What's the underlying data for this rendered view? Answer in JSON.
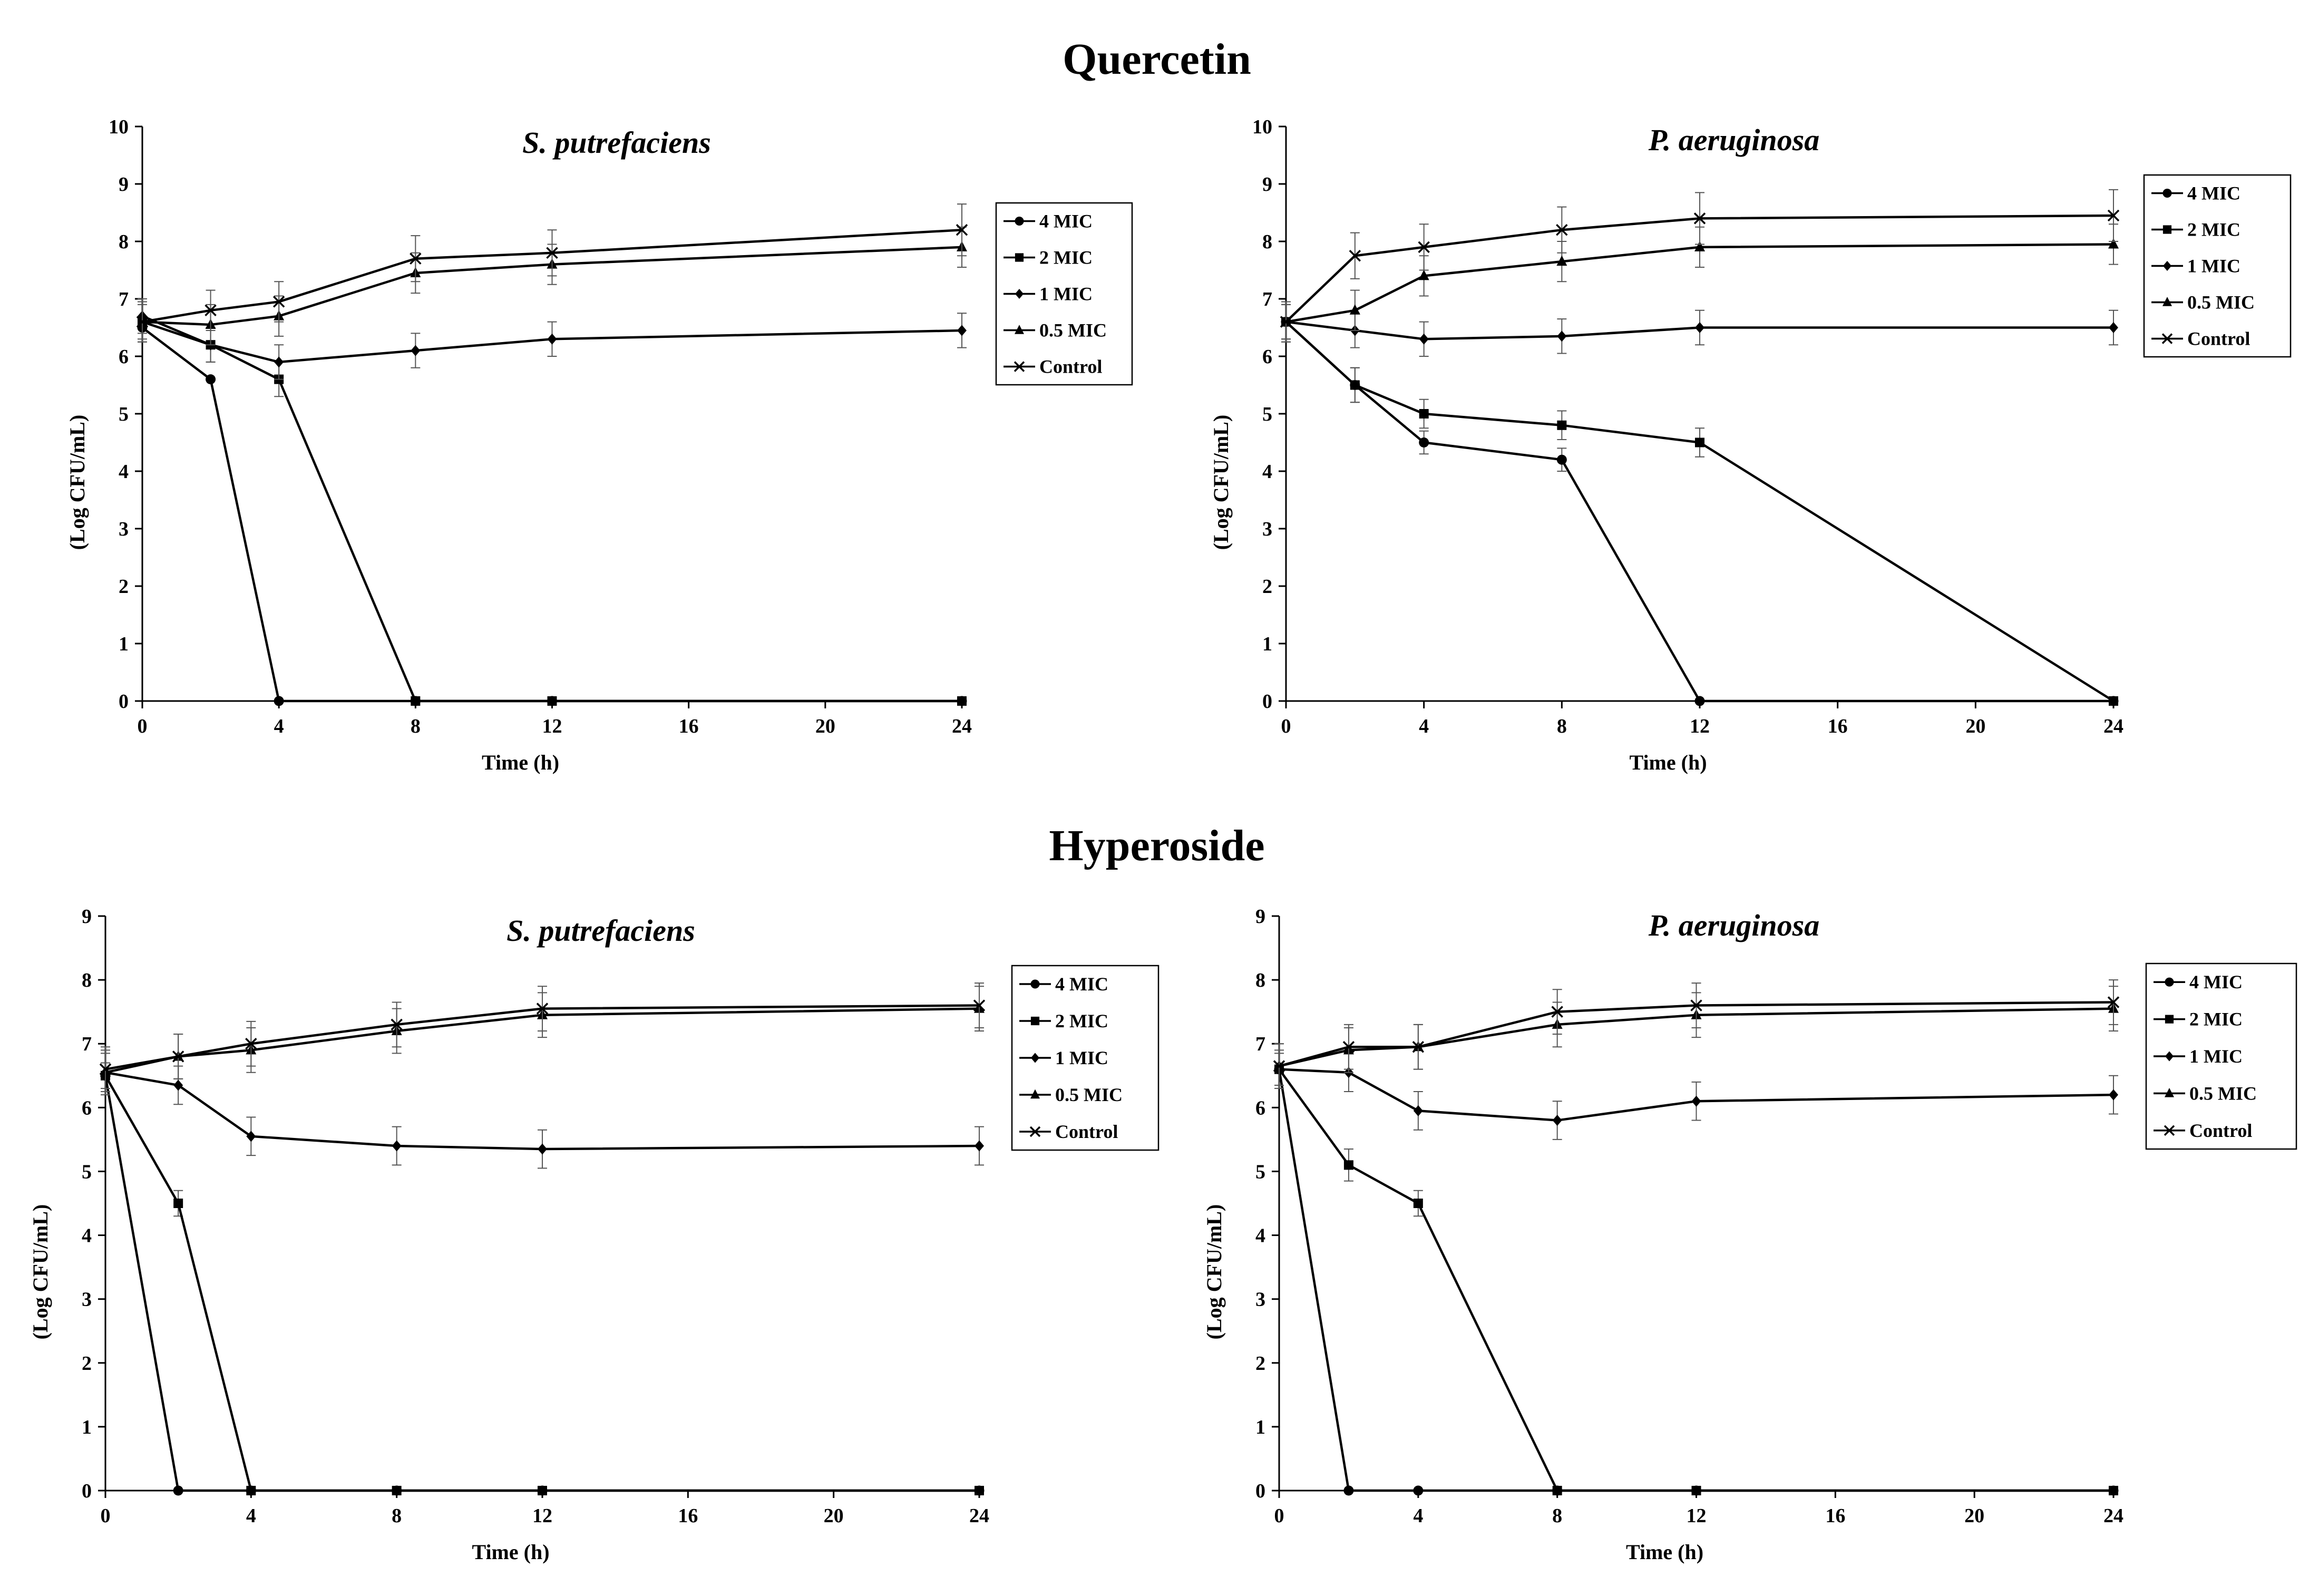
{
  "section_titles": [
    "Quercetin",
    "Hyperoside"
  ],
  "chart_data": [
    {
      "type": "line",
      "group": "Quercetin",
      "title": "S. putrefaciens",
      "xlabel": "Time (h)",
      "ylabel": "(Log CFU/mL)",
      "xlim": [
        0,
        24
      ],
      "ylim": [
        0,
        10
      ],
      "xticks": [
        0,
        4,
        8,
        12,
        16,
        20,
        24
      ],
      "yticks": [
        0,
        1,
        2,
        3,
        4,
        5,
        6,
        7,
        8,
        9,
        10
      ],
      "legend_position": "right",
      "series": [
        {
          "name": "4 MIC",
          "marker": "circle",
          "x": [
            0,
            2,
            4,
            8,
            12,
            24
          ],
          "y": [
            6.5,
            5.6,
            0,
            0,
            0,
            0
          ],
          "err": [
            0,
            0,
            0,
            0,
            0,
            0
          ]
        },
        {
          "name": "2 MIC",
          "marker": "square",
          "x": [
            0,
            2,
            4,
            8,
            12,
            24
          ],
          "y": [
            6.6,
            6.2,
            5.6,
            0,
            0,
            0
          ],
          "err": [
            0.3,
            0.3,
            0.3,
            0,
            0,
            0
          ]
        },
        {
          "name": "1 MIC",
          "marker": "diamond",
          "x": [
            0,
            2,
            4,
            8,
            12,
            24
          ],
          "y": [
            6.7,
            6.2,
            5.9,
            6.1,
            6.3,
            6.45
          ],
          "err": [
            0.3,
            0.3,
            0.3,
            0.3,
            0.3,
            0.3
          ]
        },
        {
          "name": "0.5 MIC",
          "marker": "triangle",
          "x": [
            0,
            2,
            4,
            8,
            12,
            24
          ],
          "y": [
            6.6,
            6.55,
            6.7,
            7.45,
            7.6,
            7.9
          ],
          "err": [
            0.35,
            0.35,
            0.35,
            0.35,
            0.35,
            0.35
          ]
        },
        {
          "name": "Control",
          "marker": "x",
          "x": [
            0,
            2,
            4,
            8,
            12,
            24
          ],
          "y": [
            6.6,
            6.8,
            6.95,
            7.7,
            7.8,
            8.2
          ],
          "err": [
            0.35,
            0.35,
            0.35,
            0.4,
            0.4,
            0.45
          ]
        }
      ]
    },
    {
      "type": "line",
      "group": "Quercetin",
      "title": "P. aeruginosa",
      "xlabel": "Time (h)",
      "ylabel": "(Log CFU/mL)",
      "xlim": [
        0,
        24
      ],
      "ylim": [
        0,
        10
      ],
      "xticks": [
        0,
        4,
        8,
        12,
        16,
        20,
        24
      ],
      "yticks": [
        0,
        1,
        2,
        3,
        4,
        5,
        6,
        7,
        8,
        9,
        10
      ],
      "legend_position": "right",
      "series": [
        {
          "name": "4 MIC",
          "marker": "circle",
          "x": [
            0,
            2,
            4,
            8,
            12,
            24
          ],
          "y": [
            6.6,
            5.5,
            4.5,
            4.2,
            0,
            0
          ],
          "err": [
            0.3,
            0.3,
            0.2,
            0.2,
            0,
            0
          ]
        },
        {
          "name": "2 MIC",
          "marker": "square",
          "x": [
            0,
            2,
            4,
            8,
            12,
            24
          ],
          "y": [
            6.6,
            5.5,
            5.0,
            4.8,
            4.5,
            0
          ],
          "err": [
            0.3,
            0.3,
            0.25,
            0.25,
            0.25,
            0
          ]
        },
        {
          "name": "1 MIC",
          "marker": "diamond",
          "x": [
            0,
            2,
            4,
            8,
            12,
            24
          ],
          "y": [
            6.6,
            6.45,
            6.3,
            6.35,
            6.5,
            6.5
          ],
          "err": [
            0.3,
            0.3,
            0.3,
            0.3,
            0.3,
            0.3
          ]
        },
        {
          "name": "0.5 MIC",
          "marker": "triangle",
          "x": [
            0,
            2,
            4,
            8,
            12,
            24
          ],
          "y": [
            6.6,
            6.8,
            7.4,
            7.65,
            7.9,
            7.95
          ],
          "err": [
            0.35,
            0.35,
            0.35,
            0.35,
            0.35,
            0.35
          ]
        },
        {
          "name": "Control",
          "marker": "x",
          "x": [
            0,
            2,
            4,
            8,
            12,
            24
          ],
          "y": [
            6.6,
            7.75,
            7.9,
            8.2,
            8.4,
            8.45
          ],
          "err": [
            0.35,
            0.4,
            0.4,
            0.4,
            0.45,
            0.45
          ]
        }
      ]
    },
    {
      "type": "line",
      "group": "Hyperoside",
      "title": "S. putrefaciens",
      "xlabel": "Time (h)",
      "ylabel": "(Log CFU/mL)",
      "xlim": [
        0,
        24
      ],
      "ylim": [
        0,
        9
      ],
      "xticks": [
        0,
        4,
        8,
        12,
        16,
        20,
        24
      ],
      "yticks": [
        0,
        1,
        2,
        3,
        4,
        5,
        6,
        7,
        8,
        9
      ],
      "legend_position": "right",
      "series": [
        {
          "name": "4 MIC",
          "marker": "circle",
          "x": [
            0,
            2,
            4,
            8,
            12,
            24
          ],
          "y": [
            6.5,
            0,
            0,
            0,
            0,
            0
          ],
          "err": [
            0,
            0,
            0,
            0,
            0,
            0
          ]
        },
        {
          "name": "2 MIC",
          "marker": "square",
          "x": [
            0,
            2,
            4,
            8,
            12,
            24
          ],
          "y": [
            6.5,
            4.5,
            0,
            0,
            0,
            0
          ],
          "err": [
            0.2,
            0.2,
            0,
            0,
            0,
            0
          ]
        },
        {
          "name": "1 MIC",
          "marker": "diamond",
          "x": [
            0,
            2,
            4,
            8,
            12,
            24
          ],
          "y": [
            6.55,
            6.35,
            5.55,
            5.4,
            5.35,
            5.4
          ],
          "err": [
            0.3,
            0.3,
            0.3,
            0.3,
            0.3,
            0.3
          ]
        },
        {
          "name": "0.5 MIC",
          "marker": "triangle",
          "x": [
            0,
            2,
            4,
            8,
            12,
            24
          ],
          "y": [
            6.55,
            6.8,
            6.9,
            7.2,
            7.45,
            7.55
          ],
          "err": [
            0.35,
            0.35,
            0.35,
            0.35,
            0.35,
            0.35
          ]
        },
        {
          "name": "Control",
          "marker": "x",
          "x": [
            0,
            2,
            4,
            8,
            12,
            24
          ],
          "y": [
            6.6,
            6.8,
            7.0,
            7.3,
            7.55,
            7.6
          ],
          "err": [
            0.35,
            0.35,
            0.35,
            0.35,
            0.35,
            0.35
          ]
        }
      ]
    },
    {
      "type": "line",
      "group": "Hyperoside",
      "title": "P. aeruginosa",
      "xlabel": "Time (h)",
      "ylabel": "(Log CFU/mL)",
      "xlim": [
        0,
        24
      ],
      "ylim": [
        0,
        9
      ],
      "xticks": [
        0,
        4,
        8,
        12,
        16,
        20,
        24
      ],
      "yticks": [
        0,
        1,
        2,
        3,
        4,
        5,
        6,
        7,
        8,
        9
      ],
      "legend_position": "right",
      "series": [
        {
          "name": "4 MIC",
          "marker": "circle",
          "x": [
            0,
            2,
            4,
            8,
            12,
            24
          ],
          "y": [
            6.6,
            0,
            0,
            0,
            0,
            0
          ],
          "err": [
            0,
            0,
            0,
            0,
            0,
            0
          ]
        },
        {
          "name": "2 MIC",
          "marker": "square",
          "x": [
            0,
            2,
            4,
            8,
            12,
            24
          ],
          "y": [
            6.6,
            5.1,
            4.5,
            0,
            0,
            0
          ],
          "err": [
            0.25,
            0.25,
            0.2,
            0,
            0,
            0
          ]
        },
        {
          "name": "1 MIC",
          "marker": "diamond",
          "x": [
            0,
            2,
            4,
            8,
            12,
            24
          ],
          "y": [
            6.6,
            6.55,
            5.95,
            5.8,
            6.1,
            6.2
          ],
          "err": [
            0.3,
            0.3,
            0.3,
            0.3,
            0.3,
            0.3
          ]
        },
        {
          "name": "0.5 MIC",
          "marker": "triangle",
          "x": [
            0,
            2,
            4,
            8,
            12,
            24
          ],
          "y": [
            6.65,
            6.9,
            6.95,
            7.3,
            7.45,
            7.55
          ],
          "err": [
            0.35,
            0.35,
            0.35,
            0.35,
            0.35,
            0.35
          ]
        },
        {
          "name": "Control",
          "marker": "x",
          "x": [
            0,
            2,
            4,
            8,
            12,
            24
          ],
          "y": [
            6.65,
            6.95,
            6.95,
            7.5,
            7.6,
            7.65
          ],
          "err": [
            0.35,
            0.35,
            0.35,
            0.35,
            0.35,
            0.35
          ]
        }
      ]
    }
  ]
}
